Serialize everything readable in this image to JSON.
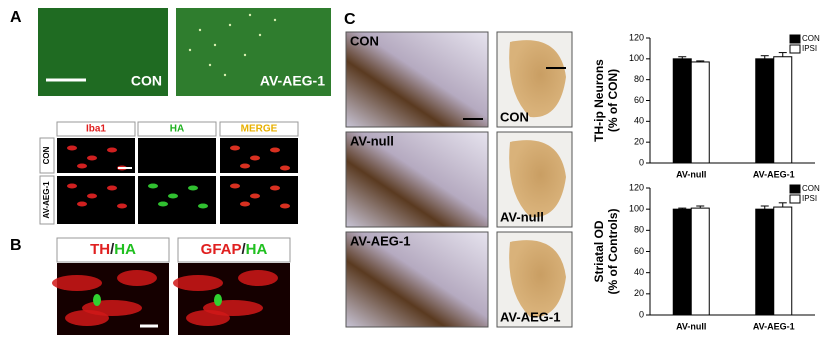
{
  "panels": {
    "a": {
      "label": "A",
      "top_images": [
        "CON",
        "AV-AEG-1"
      ],
      "channels": [
        "Iba1",
        "HA",
        "MERGE"
      ],
      "rows": [
        "CON",
        "AV-AEG-1"
      ]
    },
    "b": {
      "label": "B",
      "images": [
        [
          "TH",
          "/",
          "HA"
        ],
        [
          "GFAP",
          "/",
          "HA"
        ]
      ]
    },
    "c": {
      "label": "C",
      "sections": [
        "CON",
        "AV-null",
        "AV-AEG-1"
      ],
      "striatum": [
        "CON",
        "AV-null",
        "AV-AEG-1"
      ]
    }
  },
  "chart_data": [
    {
      "type": "bar",
      "y_label": [
        "TH-ip Neurons",
        "(% of CON)"
      ],
      "categories": [
        "AV-null",
        "AV-AEG-1"
      ],
      "series": [
        {
          "name": "CON",
          "color": "#000000",
          "values": [
            100,
            100
          ],
          "errors": [
            2,
            3
          ]
        },
        {
          "name": "IPSI",
          "color": "#ffffff",
          "values": [
            97,
            102
          ],
          "errors": [
            1,
            4
          ]
        }
      ],
      "ylim": [
        0,
        120
      ],
      "yticks": [
        0,
        20,
        40,
        60,
        80,
        100,
        120
      ]
    },
    {
      "type": "bar",
      "y_label": [
        "Striatal OD",
        "(% of Controls)"
      ],
      "categories": [
        "AV-null",
        "AV-AEG-1"
      ],
      "series": [
        {
          "name": "CON",
          "color": "#000000",
          "values": [
            100,
            100
          ],
          "errors": [
            1,
            3
          ]
        },
        {
          "name": "IPSI",
          "color": "#ffffff",
          "values": [
            101,
            102
          ],
          "errors": [
            2,
            4
          ]
        }
      ],
      "ylim": [
        0,
        120
      ],
      "yticks": [
        0,
        20,
        40,
        60,
        80,
        100,
        120
      ]
    }
  ]
}
